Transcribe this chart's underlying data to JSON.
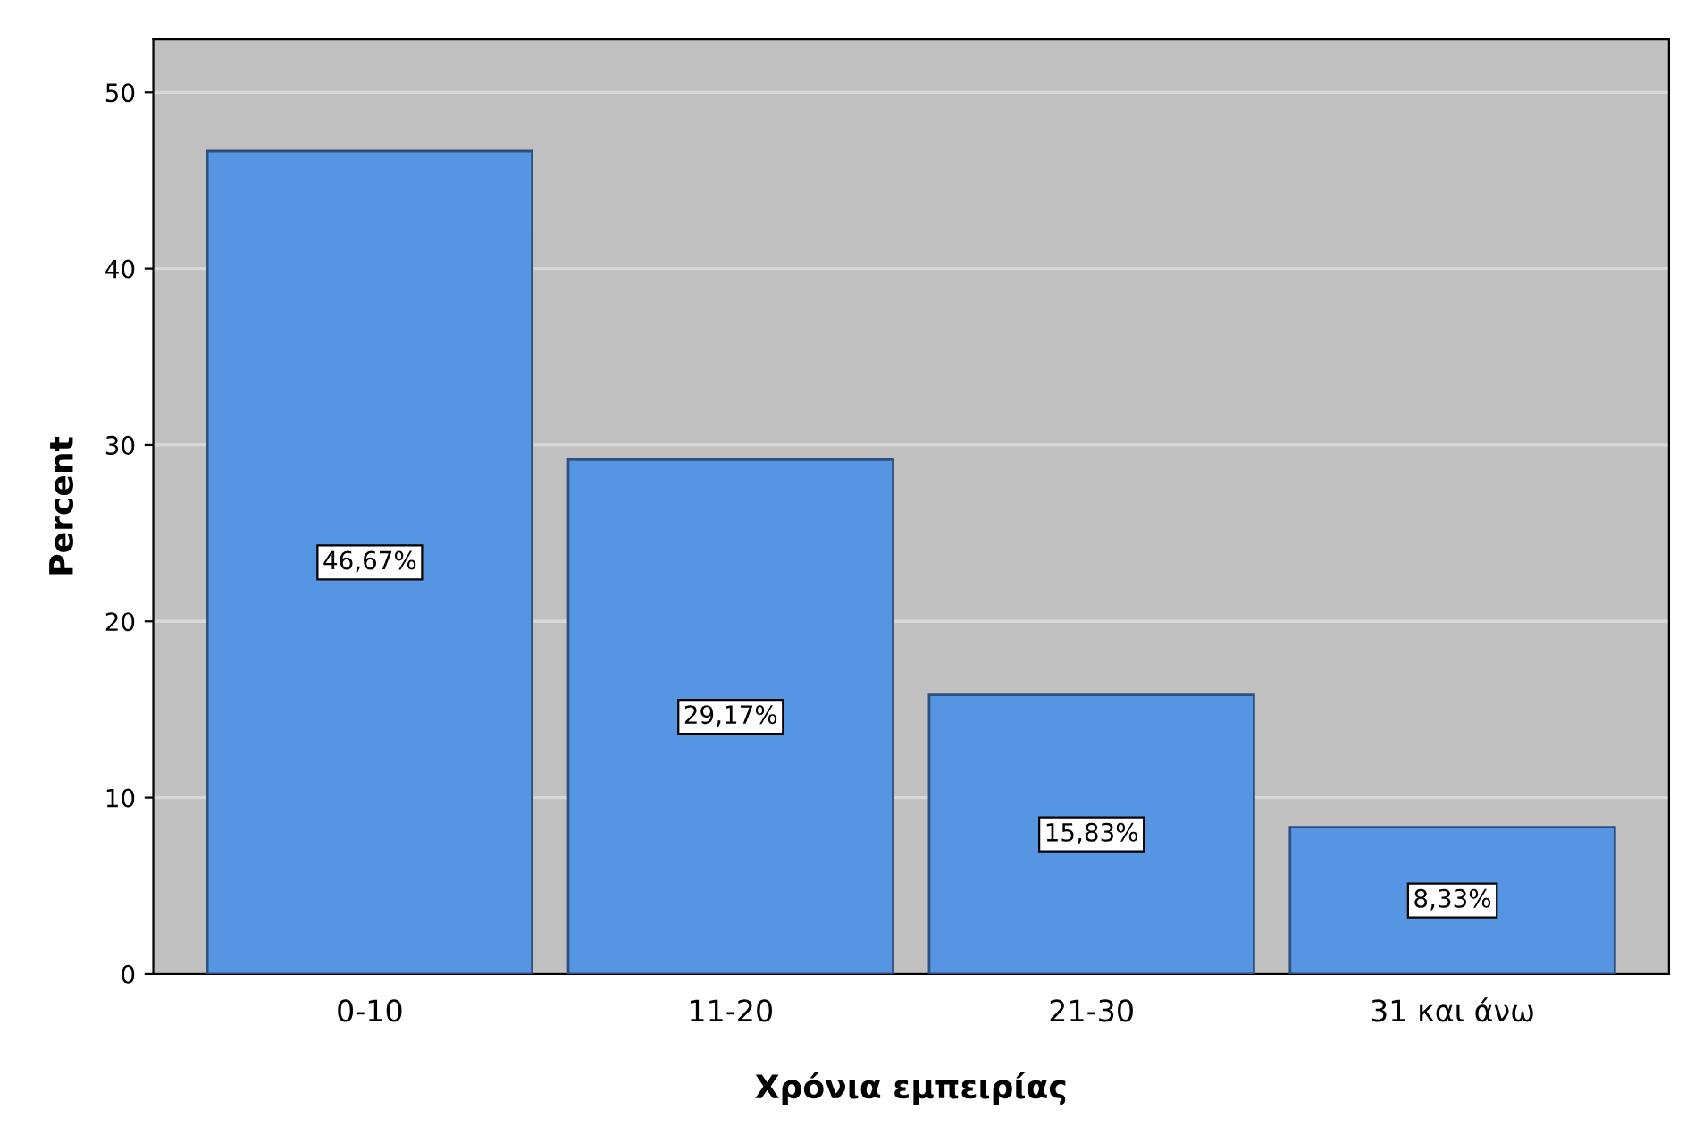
{
  "chart_data": {
    "type": "bar",
    "xlabel": "Χρόνια εμπειρίας",
    "ylabel": "Percent",
    "categories": [
      "0-10",
      "11-20",
      "21-30",
      "31 και άνω"
    ],
    "values": [
      46.67,
      29.17,
      15.83,
      8.33
    ],
    "value_labels": [
      "46,67%",
      "29,17%",
      "15,83%",
      "8,33%"
    ],
    "color": "#5595e2",
    "ylim": [
      0,
      53
    ],
    "yticks": [
      0,
      10,
      20,
      30,
      40,
      50
    ],
    "grid": "y"
  }
}
